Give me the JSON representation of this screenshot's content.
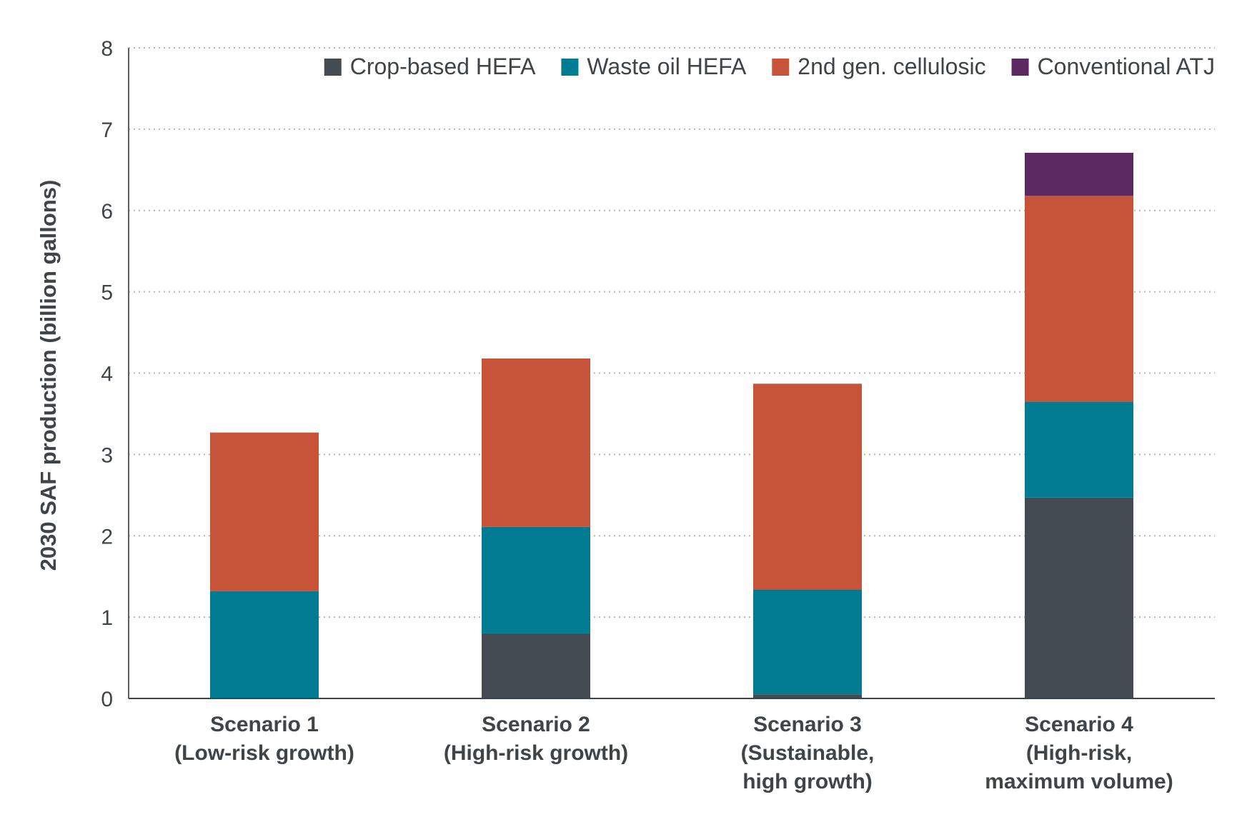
{
  "chart_data": {
    "type": "bar",
    "stacked": true,
    "title": "",
    "xlabel": "",
    "ylabel": "2030 SAF production (billion gallons)",
    "ylim": [
      0,
      8
    ],
    "yticks": [
      "0",
      "1",
      "2",
      "3",
      "4",
      "5",
      "6",
      "7",
      "8"
    ],
    "grid": "horizontal dotted",
    "legend_position": "top-right",
    "categories": [
      [
        "Scenario 1",
        "(Low-risk growth)"
      ],
      [
        "Scenario 2",
        "(High-risk growth)"
      ],
      [
        "Scenario 3",
        "(Sustainable,",
        "high growth)"
      ],
      [
        "Scenario 4",
        "(High-risk,",
        "maximum volume)"
      ]
    ],
    "series": [
      {
        "name": "Crop-based HEFA",
        "color": "#454b53",
        "values": [
          0.0,
          0.8,
          0.05,
          2.47
        ]
      },
      {
        "name": "Waste oil HEFA",
        "color": "#007b91",
        "values": [
          1.32,
          1.31,
          1.29,
          1.18
        ]
      },
      {
        "name": "2nd gen. cellulosic",
        "color": "#c75438",
        "values": [
          1.95,
          2.07,
          2.53,
          2.53
        ]
      },
      {
        "name": "Conventional ATJ",
        "color": "#5c2961",
        "values": [
          0.0,
          0.0,
          0.0,
          0.53
        ]
      }
    ]
  }
}
